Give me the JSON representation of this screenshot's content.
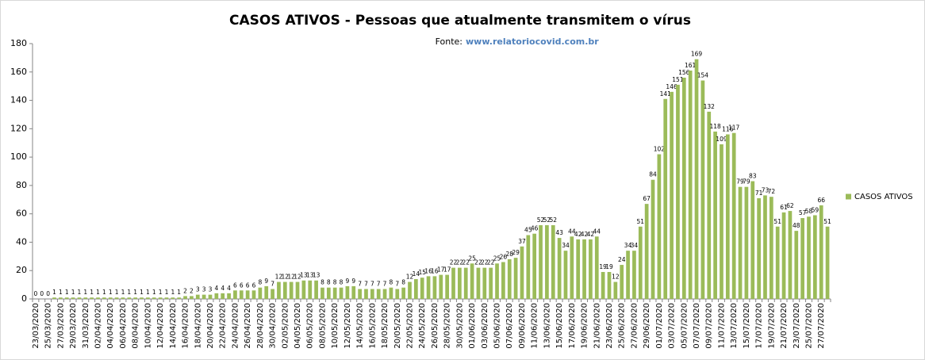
{
  "chart_data": {
    "type": "bar",
    "title": "CASOS ATIVOS - Pessoas que atualmente transmitem o vírus",
    "subtitle_label": "Fonte:",
    "subtitle_link": "www.relatoriocovid.com.br",
    "categories": [
      "23/03/2020",
      null,
      "25/03/2020",
      null,
      "27/03/2020",
      null,
      "29/03/2020",
      null,
      "31/03/2020",
      null,
      "02/04/2020",
      null,
      "04/04/2020",
      null,
      "06/04/2020",
      null,
      "08/04/2020",
      null,
      "10/04/2020",
      null,
      "12/04/2020",
      null,
      "14/04/2020",
      null,
      "16/04/2020",
      null,
      "18/04/2020",
      null,
      "20/04/2020",
      null,
      "22/04/2020",
      null,
      "24/04/2020",
      null,
      "26/04/2020",
      null,
      "28/04/2020",
      null,
      "30/04/2020",
      null,
      "02/05/2020",
      null,
      "04/05/2020",
      null,
      "06/05/2020",
      null,
      "08/05/2020",
      null,
      "10/05/2020",
      null,
      "12/05/2020",
      null,
      "14/05/2020",
      null,
      "16/05/2020",
      null,
      "18/05/2020",
      null,
      "20/05/2020",
      null,
      "22/05/2020",
      null,
      "24/05/2020",
      null,
      "26/05/2020",
      null,
      "28/05/2020",
      null,
      "30/05/2020",
      null,
      "01/06/2020",
      null,
      "03/06/2020",
      null,
      "05/06/2020",
      null,
      "07/06/2020",
      null,
      "09/06/2020",
      null,
      "11/06/2020",
      null,
      "13/06/2020",
      null,
      "15/06/2020",
      null,
      "17/06/2020",
      null,
      "19/06/2020",
      null,
      "21/06/2020",
      null,
      "23/06/2020",
      null,
      "25/06/2020",
      null,
      "27/06/2020",
      null,
      "29/06/2020",
      null,
      "01/07/2020",
      null,
      "03/07/2020",
      null,
      "05/07/2020",
      null,
      "07/07/2020",
      null,
      "09/07/2020",
      null,
      "11/07/2020",
      null,
      "13/07/2020",
      null,
      "15/07/2020",
      null,
      "17/07/2020",
      null,
      "19/07/2020",
      null,
      "21/07/2020",
      null,
      "23/07/2020",
      null,
      "25/07/2020",
      null,
      "27/07/2020",
      null
    ],
    "series": [
      {
        "name": "CASOS ATIVOS",
        "color": "#9bbb59",
        "values": [
          0,
          0,
          0,
          1,
          1,
          1,
          1,
          1,
          1,
          1,
          1,
          1,
          1,
          1,
          1,
          1,
          1,
          1,
          1,
          1,
          1,
          1,
          1,
          1,
          2,
          2,
          3,
          3,
          3,
          4,
          4,
          4,
          6,
          6,
          6,
          6,
          8,
          9,
          7,
          12,
          12,
          12,
          12,
          13,
          13,
          13,
          8,
          8,
          8,
          8,
          9,
          9,
          7,
          7,
          7,
          7,
          7,
          8,
          7,
          8,
          12,
          14,
          15,
          16,
          16,
          17,
          17,
          22,
          22,
          22,
          25,
          22,
          22,
          22,
          25,
          26,
          28,
          29,
          37,
          45,
          46,
          52,
          52,
          52,
          43,
          34,
          44,
          42,
          42,
          42,
          44,
          19,
          19,
          12,
          24,
          34,
          34,
          51,
          67,
          84,
          102,
          141,
          146,
          151,
          156,
          161,
          169,
          154,
          132,
          118,
          109,
          116,
          117,
          79,
          79,
          83,
          71,
          73,
          72,
          51,
          61,
          62,
          48,
          57,
          58,
          59,
          66,
          51
        ]
      }
    ],
    "ylim": [
      0,
      180
    ],
    "yticks": [
      0,
      20,
      40,
      60,
      80,
      100,
      120,
      140,
      160,
      180
    ],
    "grid": false,
    "legend": "right"
  }
}
